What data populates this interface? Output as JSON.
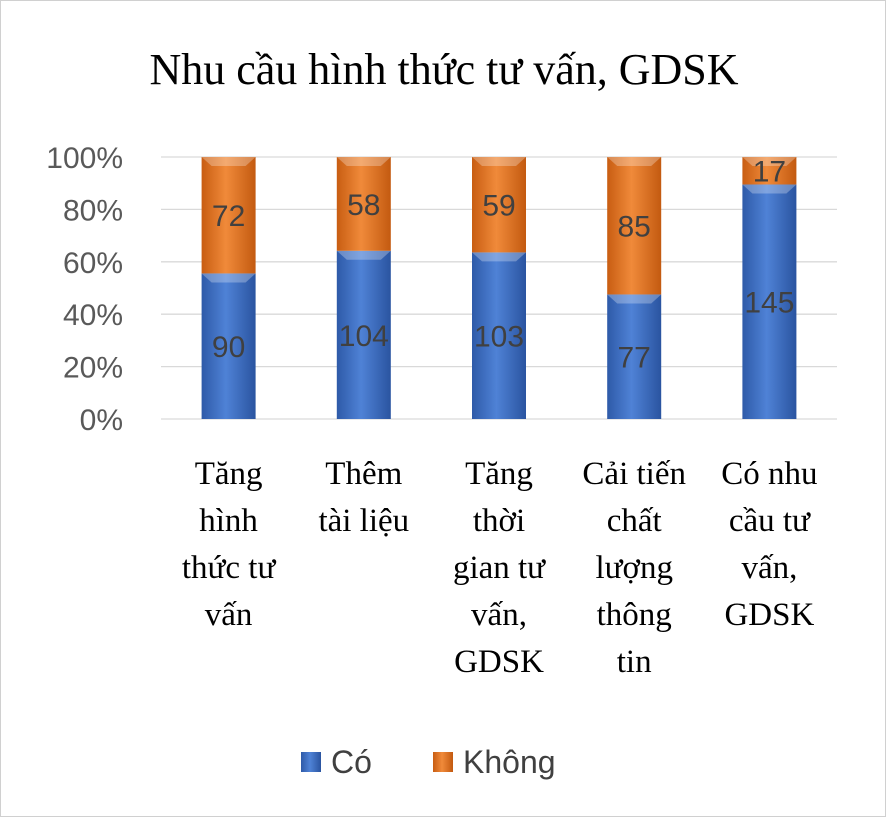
{
  "chart_data": {
    "type": "bar",
    "stacked": "percent",
    "title": "Nhu cầu hình thức tư vấn, GDSK",
    "categories": [
      [
        "Tăng",
        "hình",
        "thức tư",
        "vấn"
      ],
      [
        "Thêm",
        "tài liệu"
      ],
      [
        "Tăng",
        "thời",
        "gian tư",
        "vấn,",
        "GDSK"
      ],
      [
        "Cải tiến",
        "chất",
        "lượng",
        "thông",
        "tin"
      ],
      [
        "Có nhu",
        "cầu tư",
        "vấn,",
        "GDSK"
      ]
    ],
    "series": [
      {
        "name": "Có",
        "values": [
          90,
          104,
          103,
          77,
          145
        ],
        "color": "#4472C4"
      },
      {
        "name": "Không",
        "values": [
          72,
          58,
          59,
          85,
          17
        ],
        "color": "#ED7D31"
      }
    ],
    "yticks": [
      "0%",
      "20%",
      "40%",
      "60%",
      "80%",
      "100%"
    ],
    "ylim": [
      0,
      100
    ],
    "grid": true,
    "legend": "bottom"
  }
}
